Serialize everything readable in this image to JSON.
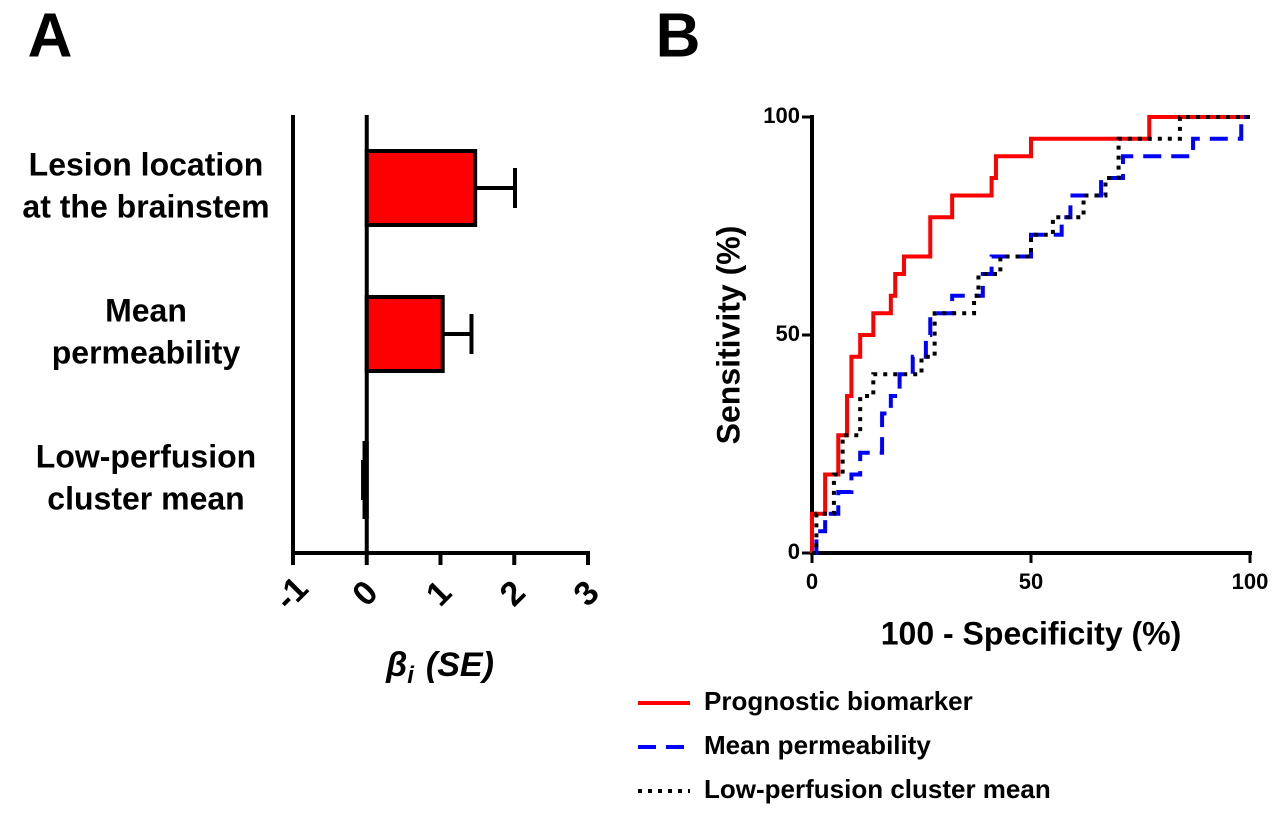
{
  "chart_data": [
    {
      "type": "hbar",
      "panel": "A",
      "categories": [
        [
          "Lesion location",
          "at the brainstem"
        ],
        [
          "Mean",
          "permeability"
        ],
        [
          "Low-perfusion",
          "cluster mean"
        ]
      ],
      "values": [
        1.47,
        1.03,
        -0.03
      ],
      "errors": [
        0.54,
        0.39,
        0.02
      ],
      "color": "#ff0000",
      "xlim": [
        -1,
        3
      ],
      "xticks": [
        -1,
        0,
        1,
        2,
        3
      ],
      "xlabel": {
        "main": "β",
        "sub": "i",
        "rest": "(SE)"
      }
    },
    {
      "type": "step",
      "panel": "B",
      "xlabel": "100 - Specificity (%)",
      "ylabel": "Sensitivity (%)",
      "xlim": [
        0,
        100
      ],
      "ylim": [
        0,
        100
      ],
      "xticks": [
        0,
        50,
        100
      ],
      "yticks": [
        0,
        50,
        100
      ],
      "series": [
        {
          "name": "Prognostic biomarker",
          "color": "#ff0000",
          "dash": "solid",
          "x": [
            0,
            0,
            3,
            3,
            6,
            6,
            8,
            8,
            9,
            9,
            11,
            11,
            14,
            14,
            18,
            18,
            19,
            19,
            21,
            21,
            27,
            27,
            32,
            32,
            41,
            41,
            42,
            42,
            50,
            50,
            77,
            77,
            100
          ],
          "values": [
            0,
            9,
            9,
            18,
            18,
            27,
            27,
            36,
            36,
            45,
            45,
            50,
            50,
            55,
            55,
            59,
            59,
            64,
            64,
            68,
            68,
            77,
            77,
            82,
            82,
            86,
            86,
            91,
            91,
            95,
            95,
            100,
            100
          ]
        },
        {
          "name": "Mean permeability",
          "color": "#0000ff",
          "dash": "dashed",
          "x": [
            0,
            1,
            1,
            3,
            3,
            6,
            6,
            9,
            9,
            11,
            11,
            16,
            16,
            18,
            18,
            20,
            20,
            23,
            23,
            26,
            26,
            27,
            27,
            32,
            32,
            39,
            39,
            41,
            41,
            50,
            50,
            57,
            57,
            59,
            59,
            66,
            66,
            71,
            71,
            87,
            87,
            98,
            98,
            100
          ],
          "values": [
            0,
            0,
            5,
            5,
            9,
            9,
            14,
            14,
            18,
            18,
            23,
            23,
            32,
            32,
            36,
            36,
            41,
            41,
            45,
            45,
            50,
            50,
            55,
            55,
            59,
            59,
            64,
            64,
            68,
            68,
            73,
            73,
            77,
            77,
            82,
            82,
            86,
            86,
            91,
            91,
            95,
            95,
            100,
            100
          ]
        },
        {
          "name": "Low-perfusion cluster mean",
          "color": "#000000",
          "dash": "dotted",
          "x": [
            0,
            1,
            1,
            5,
            5,
            7,
            7,
            11,
            11,
            14,
            14,
            25,
            25,
            28,
            28,
            37,
            37,
            38,
            38,
            43,
            43,
            50,
            50,
            55,
            55,
            62,
            62,
            67,
            67,
            70,
            70,
            84,
            84,
            100
          ],
          "values": [
            0,
            0,
            9,
            9,
            18,
            18,
            27,
            27,
            36,
            36,
            41,
            41,
            45,
            45,
            55,
            55,
            59,
            59,
            64,
            64,
            68,
            68,
            73,
            73,
            77,
            77,
            82,
            82,
            86,
            86,
            95,
            95,
            100,
            100
          ]
        }
      ]
    }
  ]
}
